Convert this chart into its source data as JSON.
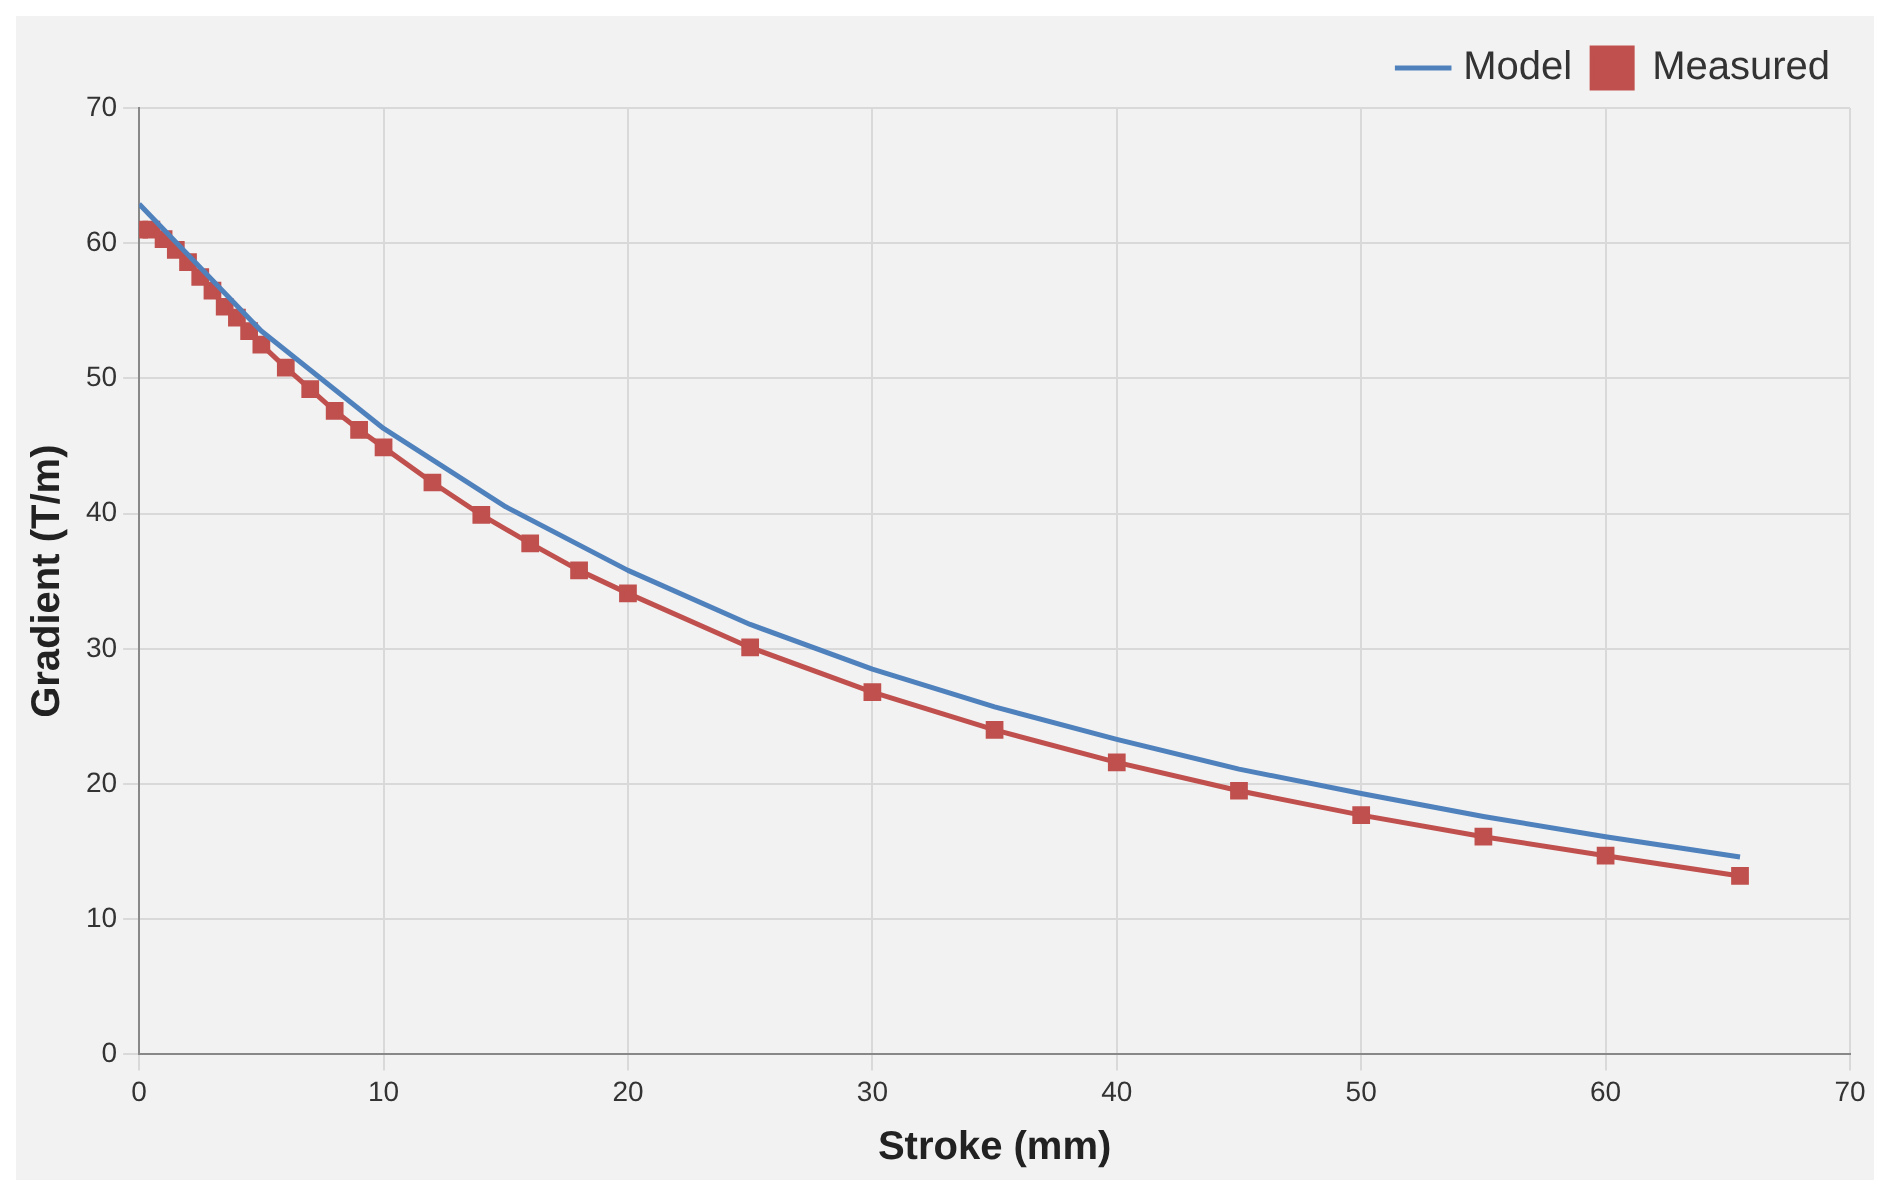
{
  "chart_data": {
    "type": "line",
    "xlabel": "Stroke (mm)",
    "ylabel": "Gradient (T/m)",
    "xlim": [
      0,
      70
    ],
    "xticks": [
      0,
      10,
      20,
      30,
      40,
      50,
      60,
      70
    ],
    "ylim": [
      0,
      70
    ],
    "yticks": [
      0,
      10,
      20,
      30,
      40,
      50,
      60,
      70
    ],
    "grid": true,
    "legend": "top right",
    "line_style": "solid",
    "series": [
      {
        "name": "Model",
        "color": "#4f81bd",
        "marker": "none",
        "x": [
          0,
          5,
          10,
          15,
          20,
          25,
          30,
          35,
          40,
          45,
          50,
          55,
          60,
          65.5
        ],
        "values": [
          62.9,
          53.5,
          46.3,
          40.5,
          35.8,
          31.8,
          28.5,
          25.7,
          23.3,
          21.1,
          19.3,
          17.6,
          16.1,
          14.6
        ]
      },
      {
        "name": "Measured",
        "color": "#c0504d",
        "marker": "square",
        "x": [
          0,
          0.5,
          1,
          1.5,
          2,
          2.5,
          3,
          3.5,
          4,
          4.5,
          5,
          6,
          7,
          8,
          9,
          10,
          12,
          14,
          16,
          18,
          20,
          25,
          30,
          35,
          40,
          45,
          50,
          55,
          60,
          65.5
        ],
        "values": [
          61,
          61,
          60.3,
          59.5,
          58.6,
          57.5,
          56.5,
          55.3,
          54.5,
          53.5,
          52.5,
          50.8,
          49.2,
          47.6,
          46.2,
          44.9,
          42.3,
          39.9,
          37.8,
          35.8,
          34.1,
          30.1,
          26.8,
          24,
          21.6,
          19.5,
          17.7,
          16.1,
          14.7,
          13.2
        ]
      }
    ]
  }
}
